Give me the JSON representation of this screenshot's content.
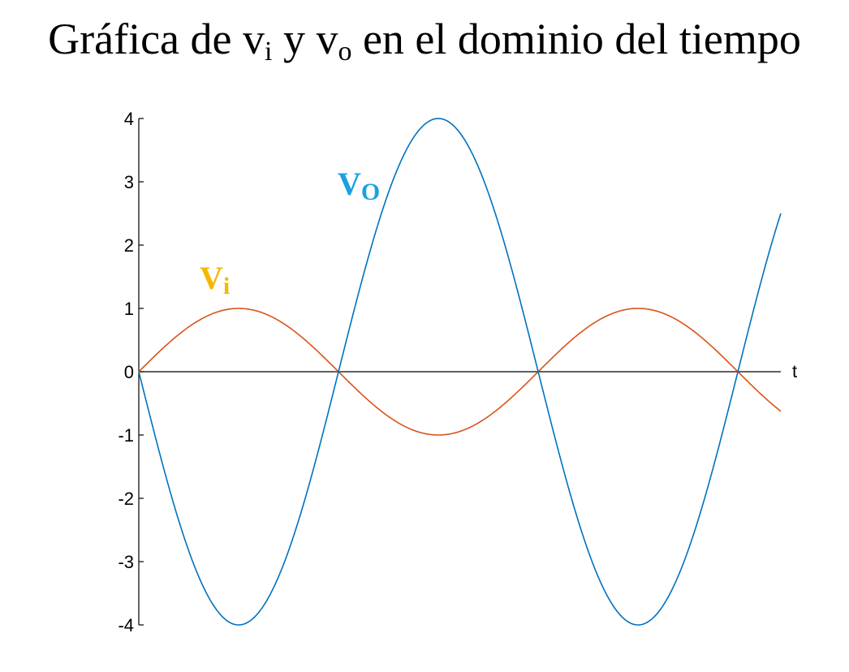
{
  "title": {
    "main": "Gráfica de v",
    "sub1": "i",
    "mid": " y v",
    "sub2": "o",
    "rest": " en el dominio del tiempo"
  },
  "chart_data": {
    "type": "line",
    "xlabel": "t",
    "ylabel": "",
    "xlim": [
      0,
      10.1
    ],
    "ylim": [
      -4,
      4
    ],
    "yticks": [
      4,
      3,
      2,
      1,
      0,
      -1,
      -2,
      -3,
      -4
    ],
    "ytick_labels": [
      "4",
      "3",
      "2",
      "1",
      "0",
      "-1",
      "-2",
      "-3",
      "-4"
    ],
    "grid": false,
    "legend": "none",
    "series": [
      {
        "name": "Vi",
        "label_main": "V",
        "label_sub": "i",
        "function": "sin(x)",
        "amplitude": 1,
        "color": "#D95319",
        "label_color": "#F5B800"
      },
      {
        "name": "Vo",
        "label_main": "V",
        "label_sub": "O",
        "function": "-4*sin(x)",
        "amplitude": -4,
        "color": "#0072BD",
        "label_color": "#1BA1E2"
      }
    ]
  }
}
